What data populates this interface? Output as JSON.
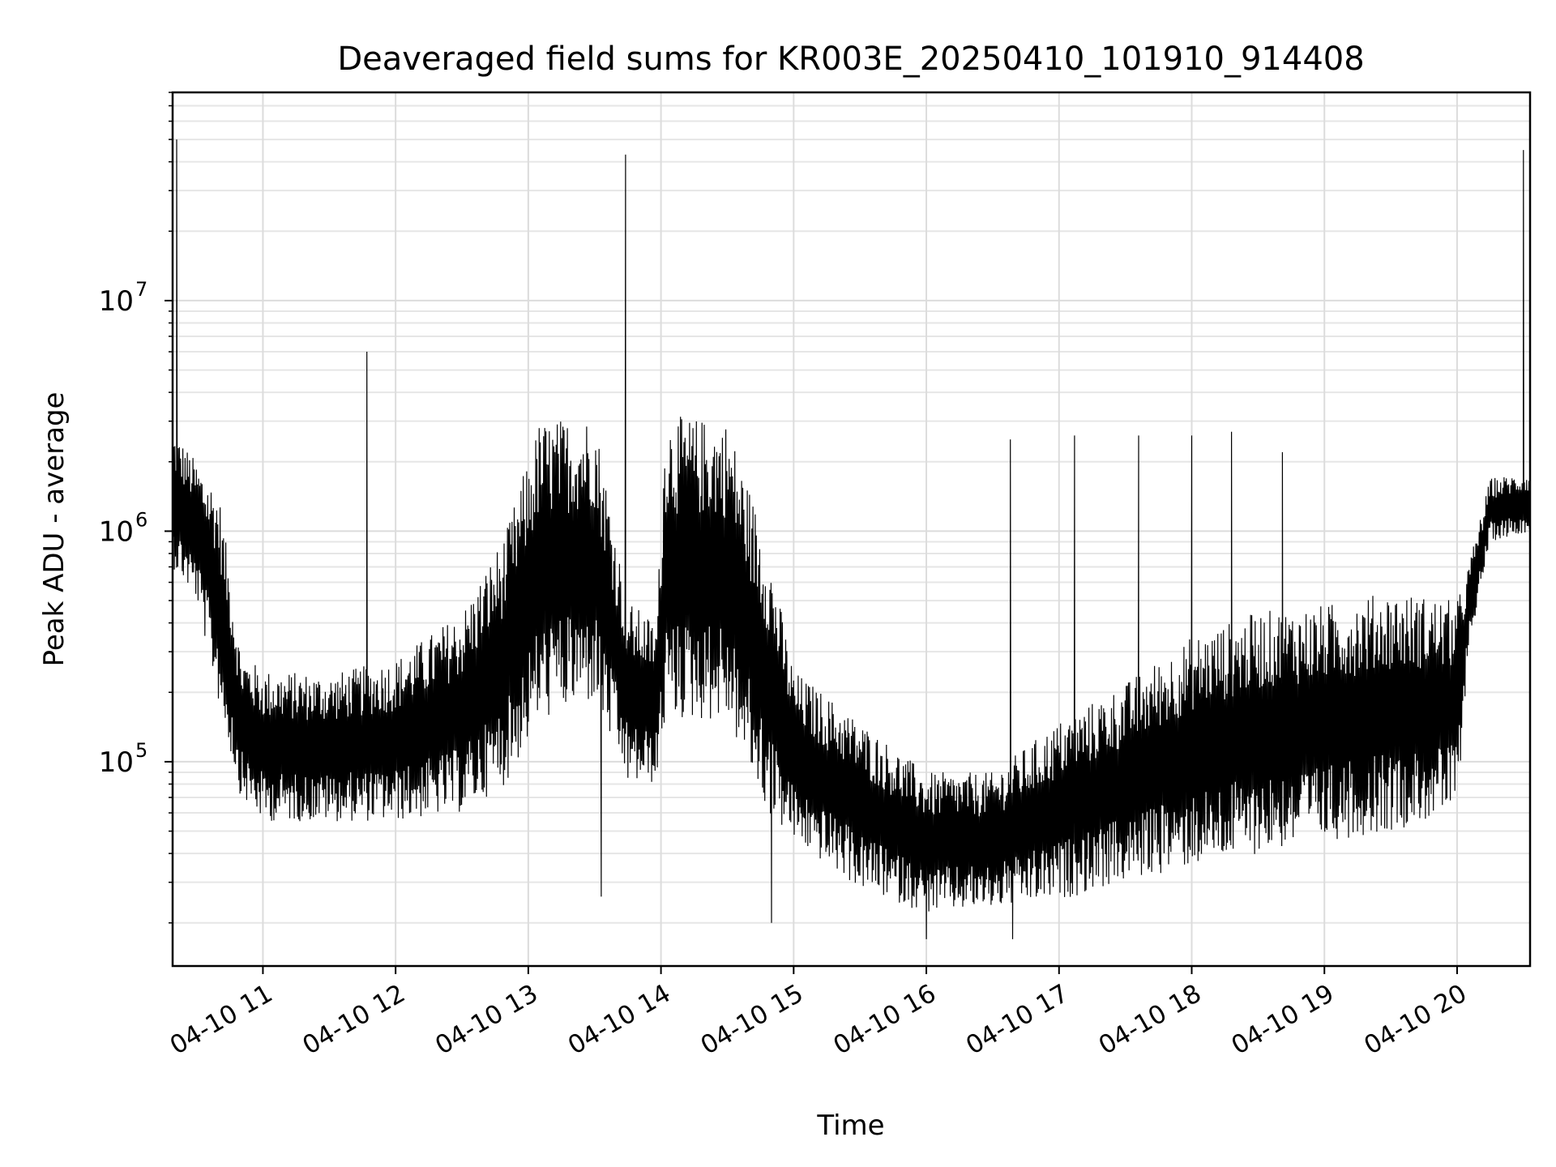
{
  "chart_data": {
    "type": "line",
    "title": "Deaveraged field sums for KR003E_20250410_101910_914408",
    "xlabel": "Time",
    "ylabel": "Peak ADU - average",
    "yscale": "log",
    "xlim": [
      "2025-04-10 10:19:10",
      "2025-04-10 20:33:00"
    ],
    "ylim": [
      13000,
      80000000
    ],
    "grid": true,
    "line_color": "#000000",
    "x_ticks": [
      {
        "time": "2025-04-10 11:00",
        "label": "04-10 11"
      },
      {
        "time": "2025-04-10 12:00",
        "label": "04-10 12"
      },
      {
        "time": "2025-04-10 13:00",
        "label": "04-10 13"
      },
      {
        "time": "2025-04-10 14:00",
        "label": "04-10 14"
      },
      {
        "time": "2025-04-10 15:00",
        "label": "04-10 15"
      },
      {
        "time": "2025-04-10 16:00",
        "label": "04-10 16"
      },
      {
        "time": "2025-04-10 17:00",
        "label": "04-10 17"
      },
      {
        "time": "2025-04-10 18:00",
        "label": "04-10 18"
      },
      {
        "time": "2025-04-10 19:00",
        "label": "04-10 19"
      },
      {
        "time": "2025-04-10 20:00",
        "label": "04-10 20"
      }
    ],
    "y_ticks": [
      {
        "value": 100000,
        "base": "10",
        "exp": "5"
      },
      {
        "value": 1000000,
        "base": "10",
        "exp": "6"
      },
      {
        "value": 10000000,
        "base": "10",
        "exp": "7"
      }
    ],
    "series": [
      {
        "name": "",
        "envelope": [
          {
            "time": "2025-04-10 10:19",
            "low": 700000,
            "high": 2800000
          },
          {
            "time": "2025-04-10 10:30",
            "low": 500000,
            "high": 2000000
          },
          {
            "time": "2025-04-10 10:40",
            "low": 180000,
            "high": 1500000
          },
          {
            "time": "2025-04-10 10:50",
            "low": 70000,
            "high": 300000
          },
          {
            "time": "2025-04-10 11:00",
            "low": 55000,
            "high": 250000
          },
          {
            "time": "2025-04-10 11:30",
            "low": 55000,
            "high": 240000
          },
          {
            "time": "2025-04-10 12:00",
            "low": 55000,
            "high": 280000
          },
          {
            "time": "2025-04-10 12:30",
            "low": 60000,
            "high": 450000
          },
          {
            "time": "2025-04-10 12:50",
            "low": 80000,
            "high": 1000000
          },
          {
            "time": "2025-04-10 13:05",
            "low": 150000,
            "high": 3000000
          },
          {
            "time": "2025-04-10 13:30",
            "low": 180000,
            "high": 3200000
          },
          {
            "time": "2025-04-10 13:45",
            "low": 80000,
            "high": 500000
          },
          {
            "time": "2025-04-10 13:58",
            "low": 80000,
            "high": 400000
          },
          {
            "time": "2025-04-10 14:02",
            "low": 150000,
            "high": 3200000
          },
          {
            "time": "2025-04-10 14:30",
            "low": 150000,
            "high": 3000000
          },
          {
            "time": "2025-04-10 14:48",
            "low": 60000,
            "high": 900000
          },
          {
            "time": "2025-04-10 15:00",
            "low": 45000,
            "high": 250000
          },
          {
            "time": "2025-04-10 15:30",
            "low": 28000,
            "high": 150000
          },
          {
            "time": "2025-04-10 16:00",
            "low": 22000,
            "high": 90000
          },
          {
            "time": "2025-04-10 16:30",
            "low": 23000,
            "high": 90000
          },
          {
            "time": "2025-04-10 17:00",
            "low": 25000,
            "high": 150000
          },
          {
            "time": "2025-04-10 17:30",
            "low": 30000,
            "high": 220000
          },
          {
            "time": "2025-04-10 18:00",
            "low": 35000,
            "high": 350000
          },
          {
            "time": "2025-04-10 18:30",
            "low": 40000,
            "high": 450000
          },
          {
            "time": "2025-04-10 19:00",
            "low": 45000,
            "high": 480000
          },
          {
            "time": "2025-04-10 19:30",
            "low": 50000,
            "high": 550000
          },
          {
            "time": "2025-04-10 20:00",
            "low": 60000,
            "high": 500000
          },
          {
            "time": "2025-04-10 20:05",
            "low": 300000,
            "high": 700000
          },
          {
            "time": "2025-04-10 20:15",
            "low": 900000,
            "high": 1700000
          },
          {
            "time": "2025-04-10 20:33",
            "low": 1000000,
            "high": 1800000
          }
        ],
        "spikes": [
          {
            "time": "2025-04-10 10:21",
            "value": 50000000
          },
          {
            "time": "2025-04-10 11:47",
            "value": 6000000
          },
          {
            "time": "2025-04-10 13:44",
            "value": 43000000
          },
          {
            "time": "2025-04-10 16:38",
            "value": 2500000
          },
          {
            "time": "2025-04-10 17:07",
            "value": 2600000
          },
          {
            "time": "2025-04-10 17:36",
            "value": 2600000
          },
          {
            "time": "2025-04-10 18:00",
            "value": 2600000
          },
          {
            "time": "2025-04-10 18:18",
            "value": 2700000
          },
          {
            "time": "2025-04-10 18:41",
            "value": 2200000
          },
          {
            "time": "2025-04-10 20:30",
            "value": 45000000
          }
        ],
        "dips": [
          {
            "time": "2025-04-10 13:33",
            "value": 26000
          },
          {
            "time": "2025-04-10 14:50",
            "value": 20000
          },
          {
            "time": "2025-04-10 16:00",
            "value": 17000
          },
          {
            "time": "2025-04-10 16:39",
            "value": 17000
          }
        ]
      }
    ]
  }
}
